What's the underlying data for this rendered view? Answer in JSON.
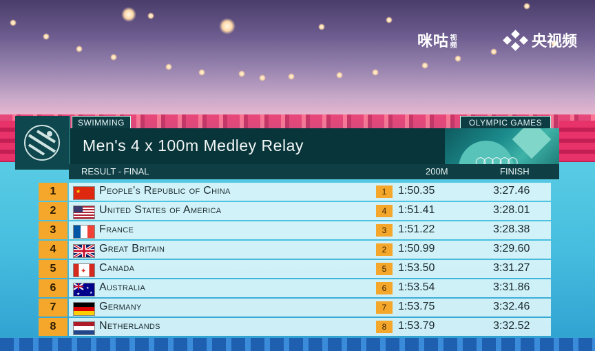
{
  "broadcaster": {
    "migu_text": "咪咕",
    "migu_small": "视频",
    "cctv_text": "央视频"
  },
  "event": {
    "sport_tag": "SWIMMING",
    "games_tag": "OLYMPIC GAMES",
    "title": "Men's 4 x 100m Medley Relay",
    "result_label": "RESULT - FINAL",
    "split_header": "200M",
    "finish_header": "FINISH"
  },
  "results": [
    {
      "rank": "1",
      "flag": "china-flag-icon",
      "country": "People's Republic of China",
      "split_pos": "1",
      "split": "1:50.35",
      "finish": "3:27.46"
    },
    {
      "rank": "2",
      "flag": "usa-flag-icon",
      "country": "United States of America",
      "split_pos": "4",
      "split": "1:51.41",
      "finish": "3:28.01"
    },
    {
      "rank": "3",
      "flag": "france-flag-icon",
      "country": "France",
      "split_pos": "3",
      "split": "1:51.22",
      "finish": "3:28.38"
    },
    {
      "rank": "4",
      "flag": "gb-flag-icon",
      "country": "Great Britain",
      "split_pos": "2",
      "split": "1:50.99",
      "finish": "3:29.60"
    },
    {
      "rank": "5",
      "flag": "canada-flag-icon",
      "country": "Canada",
      "split_pos": "5",
      "split": "1:53.50",
      "finish": "3:31.27"
    },
    {
      "rank": "6",
      "flag": "australia-flag-icon",
      "country": "Australia",
      "split_pos": "6",
      "split": "1:53.54",
      "finish": "3:31.86"
    },
    {
      "rank": "7",
      "flag": "germany-flag-icon",
      "country": "Germany",
      "split_pos": "7",
      "split": "1:53.75",
      "finish": "3:32.46"
    },
    {
      "rank": "8",
      "flag": "netherlands-flag-icon",
      "country": "Netherlands",
      "split_pos": "8",
      "split": "1:53.79",
      "finish": "3:32.52"
    }
  ],
  "colors": {
    "accent_orange": "#f4a72b",
    "panel_dark": "#08353a",
    "row_bg": "#e2f8fa"
  }
}
